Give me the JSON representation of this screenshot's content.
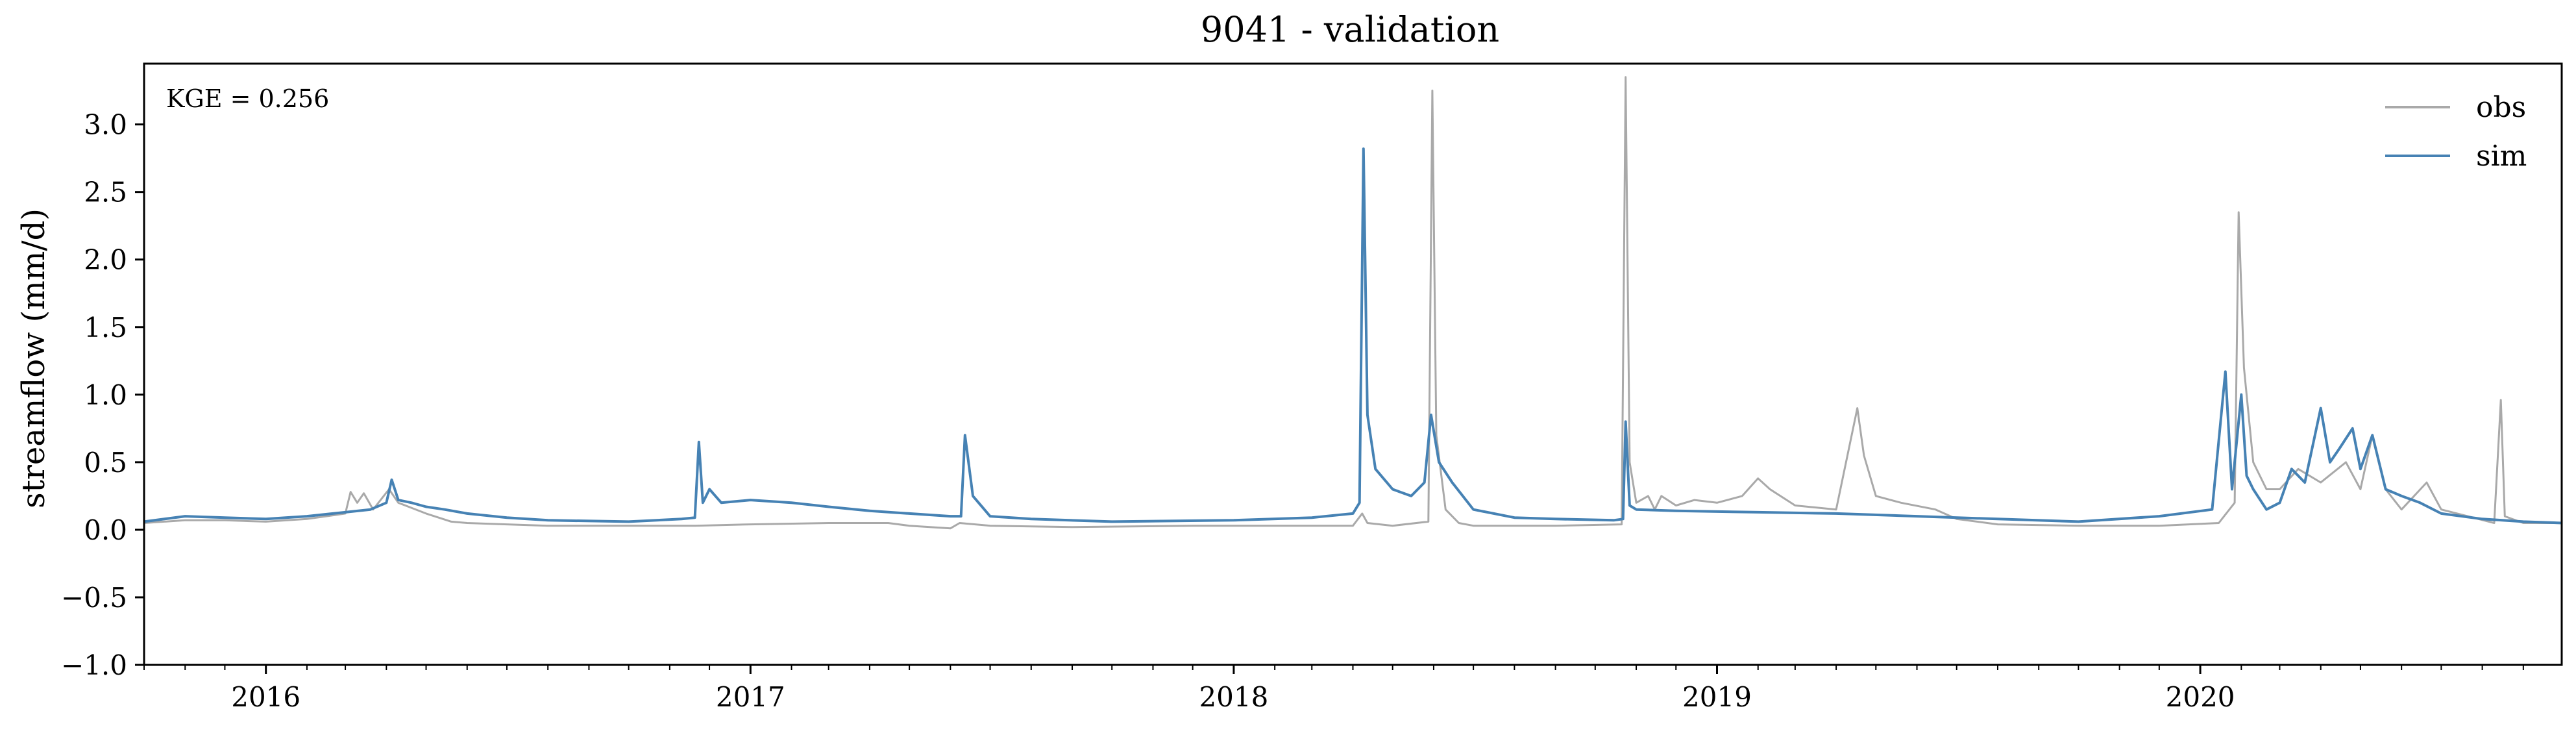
{
  "chart_data": {
    "type": "line",
    "title": "9041 - validation",
    "xlabel": "",
    "ylabel": "streamflow (mm/d)",
    "annotation": "KGE = 0.256",
    "x_axis": {
      "type": "date",
      "start": "2015-10-01",
      "end": "2020-09-30",
      "tick_labels": [
        "2016",
        "2017",
        "2018",
        "2019",
        "2020"
      ]
    },
    "ylim": [
      -1.0,
      3.45
    ],
    "yticks": [
      -1.0,
      -0.5,
      0.0,
      0.5,
      1.0,
      1.5,
      2.0,
      2.5,
      3.0
    ],
    "ytick_labels": [
      "−1.0",
      "−0.5",
      "0.0",
      "0.5",
      "1.0",
      "1.5",
      "2.0",
      "2.5",
      "3.0"
    ],
    "grid": false,
    "legend_position": "top-right",
    "colors": {
      "obs": "#a9a9a9",
      "sim": "#4682b4"
    },
    "series": [
      {
        "name": "obs",
        "points": [
          [
            "2015-10-01",
            0.05
          ],
          [
            "2015-11-01",
            0.07
          ],
          [
            "2015-12-01",
            0.07
          ],
          [
            "2016-01-01",
            0.06
          ],
          [
            "2016-02-01",
            0.08
          ],
          [
            "2016-03-01",
            0.12
          ],
          [
            "2016-03-05",
            0.28
          ],
          [
            "2016-03-10",
            0.2
          ],
          [
            "2016-03-15",
            0.27
          ],
          [
            "2016-03-22",
            0.15
          ],
          [
            "2016-04-03",
            0.3
          ],
          [
            "2016-04-10",
            0.2
          ],
          [
            "2016-05-01",
            0.12
          ],
          [
            "2016-05-20",
            0.06
          ],
          [
            "2016-06-01",
            0.05
          ],
          [
            "2016-07-01",
            0.04
          ],
          [
            "2016-08-01",
            0.03
          ],
          [
            "2016-10-01",
            0.03
          ],
          [
            "2016-11-20",
            0.03
          ],
          [
            "2017-01-01",
            0.04
          ],
          [
            "2017-03-01",
            0.05
          ],
          [
            "2017-04-15",
            0.05
          ],
          [
            "2017-05-01",
            0.03
          ],
          [
            "2017-06-01",
            0.01
          ],
          [
            "2017-06-08",
            0.05
          ],
          [
            "2017-07-01",
            0.03
          ],
          [
            "2017-09-01",
            0.02
          ],
          [
            "2017-12-01",
            0.03
          ],
          [
            "2018-03-01",
            0.03
          ],
          [
            "2018-04-01",
            0.03
          ],
          [
            "2018-04-08",
            0.12
          ],
          [
            "2018-04-12",
            0.05
          ],
          [
            "2018-05-01",
            0.03
          ],
          [
            "2018-05-28",
            0.06
          ],
          [
            "2018-05-31",
            3.25
          ],
          [
            "2018-06-03",
            0.7
          ],
          [
            "2018-06-10",
            0.15
          ],
          [
            "2018-06-20",
            0.05
          ],
          [
            "2018-07-01",
            0.03
          ],
          [
            "2018-09-01",
            0.03
          ],
          [
            "2018-10-21",
            0.04
          ],
          [
            "2018-10-24",
            3.35
          ],
          [
            "2018-10-27",
            0.5
          ],
          [
            "2018-11-01",
            0.2
          ],
          [
            "2018-11-10",
            0.25
          ],
          [
            "2018-11-15",
            0.15
          ],
          [
            "2018-11-20",
            0.25
          ],
          [
            "2018-12-01",
            0.18
          ],
          [
            "2018-12-15",
            0.22
          ],
          [
            "2019-01-01",
            0.2
          ],
          [
            "2019-01-20",
            0.25
          ],
          [
            "2019-02-01",
            0.38
          ],
          [
            "2019-02-10",
            0.3
          ],
          [
            "2019-03-01",
            0.18
          ],
          [
            "2019-04-01",
            0.15
          ],
          [
            "2019-04-17",
            0.9
          ],
          [
            "2019-04-22",
            0.55
          ],
          [
            "2019-05-01",
            0.25
          ],
          [
            "2019-05-20",
            0.2
          ],
          [
            "2019-06-15",
            0.15
          ],
          [
            "2019-07-01",
            0.08
          ],
          [
            "2019-08-01",
            0.04
          ],
          [
            "2019-10-01",
            0.03
          ],
          [
            "2019-12-01",
            0.03
          ],
          [
            "2020-01-15",
            0.05
          ],
          [
            "2020-01-27",
            0.2
          ],
          [
            "2020-01-30",
            2.35
          ],
          [
            "2020-02-03",
            1.2
          ],
          [
            "2020-02-10",
            0.5
          ],
          [
            "2020-02-20",
            0.3
          ],
          [
            "2020-03-01",
            0.3
          ],
          [
            "2020-03-15",
            0.45
          ],
          [
            "2020-04-01",
            0.35
          ],
          [
            "2020-04-20",
            0.5
          ],
          [
            "2020-05-01",
            0.3
          ],
          [
            "2020-05-10",
            0.7
          ],
          [
            "2020-05-20",
            0.3
          ],
          [
            "2020-06-01",
            0.15
          ],
          [
            "2020-06-20",
            0.35
          ],
          [
            "2020-07-01",
            0.15
          ],
          [
            "2020-08-10",
            0.05
          ],
          [
            "2020-08-15",
            0.96
          ],
          [
            "2020-08-18",
            0.1
          ],
          [
            "2020-09-01",
            0.05
          ],
          [
            "2020-09-30",
            0.05
          ]
        ]
      },
      {
        "name": "sim",
        "points": [
          [
            "2015-10-01",
            0.06
          ],
          [
            "2015-11-01",
            0.1
          ],
          [
            "2015-12-01",
            0.09
          ],
          [
            "2016-01-01",
            0.08
          ],
          [
            "2016-02-01",
            0.1
          ],
          [
            "2016-03-01",
            0.13
          ],
          [
            "2016-03-20",
            0.15
          ],
          [
            "2016-04-01",
            0.2
          ],
          [
            "2016-04-05",
            0.37
          ],
          [
            "2016-04-10",
            0.22
          ],
          [
            "2016-04-20",
            0.2
          ],
          [
            "2016-05-01",
            0.17
          ],
          [
            "2016-05-15",
            0.15
          ],
          [
            "2016-06-01",
            0.12
          ],
          [
            "2016-07-01",
            0.09
          ],
          [
            "2016-08-01",
            0.07
          ],
          [
            "2016-10-01",
            0.06
          ],
          [
            "2016-11-10",
            0.08
          ],
          [
            "2016-11-20",
            0.09
          ],
          [
            "2016-11-23",
            0.65
          ],
          [
            "2016-11-26",
            0.2
          ],
          [
            "2016-12-01",
            0.3
          ],
          [
            "2016-12-10",
            0.2
          ],
          [
            "2017-01-01",
            0.22
          ],
          [
            "2017-02-01",
            0.2
          ],
          [
            "2017-03-01",
            0.17
          ],
          [
            "2017-04-01",
            0.14
          ],
          [
            "2017-05-01",
            0.12
          ],
          [
            "2017-06-01",
            0.1
          ],
          [
            "2017-06-09",
            0.1
          ],
          [
            "2017-06-12",
            0.7
          ],
          [
            "2017-06-18",
            0.25
          ],
          [
            "2017-07-01",
            0.1
          ],
          [
            "2017-08-01",
            0.08
          ],
          [
            "2017-10-01",
            0.06
          ],
          [
            "2018-01-01",
            0.07
          ],
          [
            "2018-03-01",
            0.09
          ],
          [
            "2018-04-01",
            0.12
          ],
          [
            "2018-04-06",
            0.2
          ],
          [
            "2018-04-09",
            2.82
          ],
          [
            "2018-04-12",
            0.85
          ],
          [
            "2018-04-18",
            0.45
          ],
          [
            "2018-05-01",
            0.3
          ],
          [
            "2018-05-15",
            0.25
          ],
          [
            "2018-05-25",
            0.35
          ],
          [
            "2018-05-30",
            0.85
          ],
          [
            "2018-06-05",
            0.5
          ],
          [
            "2018-06-15",
            0.35
          ],
          [
            "2018-07-01",
            0.15
          ],
          [
            "2018-08-01",
            0.09
          ],
          [
            "2018-09-01",
            0.08
          ],
          [
            "2018-10-15",
            0.07
          ],
          [
            "2018-10-22",
            0.08
          ],
          [
            "2018-10-24",
            0.8
          ],
          [
            "2018-10-27",
            0.18
          ],
          [
            "2018-11-01",
            0.15
          ],
          [
            "2018-12-01",
            0.14
          ],
          [
            "2019-02-01",
            0.13
          ],
          [
            "2019-04-01",
            0.12
          ],
          [
            "2019-06-01",
            0.1
          ],
          [
            "2019-08-01",
            0.08
          ],
          [
            "2019-10-01",
            0.06
          ],
          [
            "2019-12-01",
            0.1
          ],
          [
            "2020-01-10",
            0.15
          ],
          [
            "2020-01-20",
            1.17
          ],
          [
            "2020-01-25",
            0.3
          ],
          [
            "2020-02-01",
            1.0
          ],
          [
            "2020-02-05",
            0.4
          ],
          [
            "2020-02-10",
            0.3
          ],
          [
            "2020-02-20",
            0.15
          ],
          [
            "2020-03-01",
            0.2
          ],
          [
            "2020-03-10",
            0.45
          ],
          [
            "2020-03-20",
            0.35
          ],
          [
            "2020-04-01",
            0.9
          ],
          [
            "2020-04-08",
            0.5
          ],
          [
            "2020-04-15",
            0.6
          ],
          [
            "2020-04-25",
            0.75
          ],
          [
            "2020-05-01",
            0.45
          ],
          [
            "2020-05-10",
            0.7
          ],
          [
            "2020-05-20",
            0.3
          ],
          [
            "2020-06-01",
            0.25
          ],
          [
            "2020-06-15",
            0.2
          ],
          [
            "2020-07-01",
            0.12
          ],
          [
            "2020-08-01",
            0.08
          ],
          [
            "2020-09-01",
            0.06
          ],
          [
            "2020-09-30",
            0.05
          ]
        ]
      }
    ]
  }
}
